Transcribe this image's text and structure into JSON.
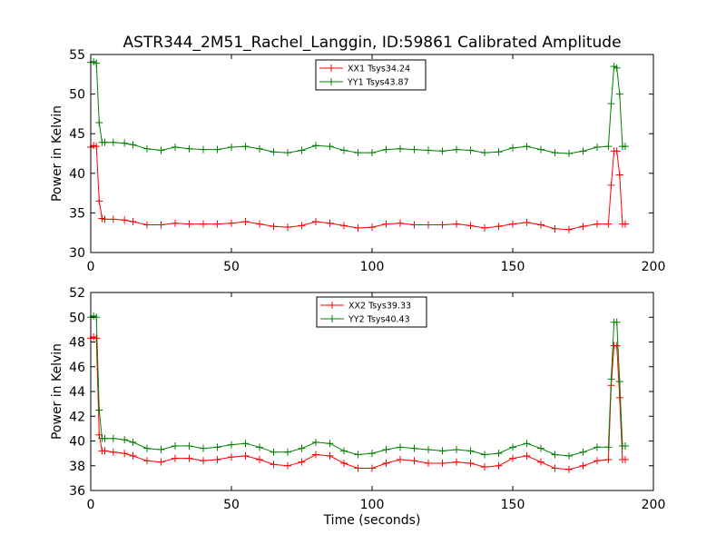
{
  "chart_data": {
    "title": "ASTR344_2M51_Rachel_Langgin, ID:59861 Calibrated Amplitude",
    "xlabel": "Time (seconds)",
    "panels": [
      {
        "type": "line",
        "ylabel": "Power in Kelvin",
        "xlim": [
          0,
          200
        ],
        "ylim": [
          30,
          55
        ],
        "xticks": [
          0,
          50,
          100,
          150,
          200
        ],
        "yticks": [
          30,
          35,
          40,
          45,
          50,
          55
        ],
        "legend_position": "top-center",
        "series": [
          {
            "name": "XX1 Tsys34.24",
            "color": "#ff0000",
            "points": [
              [
                0,
                43.3
              ],
              [
                1,
                43.5
              ],
              [
                2,
                43.4
              ],
              [
                3,
                36.5
              ],
              [
                4,
                34.3
              ],
              [
                5,
                34.2
              ],
              [
                8,
                34.2
              ],
              [
                12,
                34.1
              ],
              [
                15,
                33.9
              ],
              [
                20,
                33.5
              ],
              [
                25,
                33.5
              ],
              [
                30,
                33.7
              ],
              [
                35,
                33.6
              ],
              [
                40,
                33.6
              ],
              [
                45,
                33.6
              ],
              [
                50,
                33.7
              ],
              [
                55,
                33.9
              ],
              [
                60,
                33.6
              ],
              [
                65,
                33.3
              ],
              [
                70,
                33.2
              ],
              [
                75,
                33.4
              ],
              [
                80,
                33.9
              ],
              [
                85,
                33.7
              ],
              [
                90,
                33.4
              ],
              [
                95,
                33.1
              ],
              [
                100,
                33.2
              ],
              [
                105,
                33.6
              ],
              [
                110,
                33.7
              ],
              [
                115,
                33.5
              ],
              [
                120,
                33.5
              ],
              [
                125,
                33.5
              ],
              [
                130,
                33.6
              ],
              [
                135,
                33.4
              ],
              [
                140,
                33.1
              ],
              [
                145,
                33.3
              ],
              [
                150,
                33.6
              ],
              [
                155,
                33.8
              ],
              [
                160,
                33.5
              ],
              [
                165,
                33.0
              ],
              [
                170,
                32.9
              ],
              [
                175,
                33.3
              ],
              [
                180,
                33.6
              ],
              [
                184,
                33.6
              ],
              [
                185,
                38.5
              ],
              [
                186,
                42.8
              ],
              [
                187,
                42.8
              ],
              [
                188,
                39.8
              ],
              [
                189,
                33.6
              ],
              [
                190,
                33.6
              ]
            ]
          },
          {
            "name": "YY1 Tsys43.87",
            "color": "#008000",
            "points": [
              [
                0,
                54.0
              ],
              [
                1,
                54.1
              ],
              [
                2,
                53.9
              ],
              [
                3,
                46.4
              ],
              [
                4,
                43.9
              ],
              [
                5,
                43.9
              ],
              [
                8,
                43.9
              ],
              [
                12,
                43.8
              ],
              [
                15,
                43.6
              ],
              [
                20,
                43.1
              ],
              [
                25,
                42.9
              ],
              [
                30,
                43.3
              ],
              [
                35,
                43.1
              ],
              [
                40,
                43.0
              ],
              [
                45,
                43.0
              ],
              [
                50,
                43.3
              ],
              [
                55,
                43.4
              ],
              [
                60,
                43.1
              ],
              [
                65,
                42.7
              ],
              [
                70,
                42.6
              ],
              [
                75,
                42.9
              ],
              [
                80,
                43.5
              ],
              [
                85,
                43.4
              ],
              [
                90,
                42.9
              ],
              [
                95,
                42.6
              ],
              [
                100,
                42.6
              ],
              [
                105,
                43.0
              ],
              [
                110,
                43.1
              ],
              [
                115,
                43.0
              ],
              [
                120,
                42.9
              ],
              [
                125,
                42.8
              ],
              [
                130,
                43.0
              ],
              [
                135,
                42.9
              ],
              [
                140,
                42.6
              ],
              [
                145,
                42.7
              ],
              [
                150,
                43.2
              ],
              [
                155,
                43.4
              ],
              [
                160,
                43.0
              ],
              [
                165,
                42.6
              ],
              [
                170,
                42.5
              ],
              [
                175,
                42.8
              ],
              [
                180,
                43.3
              ],
              [
                184,
                43.4
              ],
              [
                185,
                48.8
              ],
              [
                186,
                53.5
              ],
              [
                187,
                53.3
              ],
              [
                188,
                50.0
              ],
              [
                189,
                43.4
              ],
              [
                190,
                43.4
              ]
            ]
          }
        ]
      },
      {
        "type": "line",
        "ylabel": "Power in Kelvin",
        "xlim": [
          0,
          200
        ],
        "ylim": [
          36,
          52
        ],
        "xticks": [
          0,
          50,
          100,
          150,
          200
        ],
        "yticks": [
          36,
          38,
          40,
          42,
          44,
          46,
          48,
          50,
          52
        ],
        "legend_position": "top-center",
        "series": [
          {
            "name": "XX2 Tsys39.33",
            "color": "#ff0000",
            "points": [
              [
                0,
                48.3
              ],
              [
                1,
                48.4
              ],
              [
                2,
                48.3
              ],
              [
                3,
                40.5
              ],
              [
                4,
                39.2
              ],
              [
                5,
                39.2
              ],
              [
                8,
                39.1
              ],
              [
                12,
                39.0
              ],
              [
                15,
                38.8
              ],
              [
                20,
                38.4
              ],
              [
                25,
                38.3
              ],
              [
                30,
                38.6
              ],
              [
                35,
                38.6
              ],
              [
                40,
                38.4
              ],
              [
                45,
                38.5
              ],
              [
                50,
                38.7
              ],
              [
                55,
                38.8
              ],
              [
                60,
                38.5
              ],
              [
                65,
                38.1
              ],
              [
                70,
                38.0
              ],
              [
                75,
                38.3
              ],
              [
                80,
                38.9
              ],
              [
                85,
                38.8
              ],
              [
                90,
                38.2
              ],
              [
                95,
                37.8
              ],
              [
                100,
                37.8
              ],
              [
                105,
                38.2
              ],
              [
                110,
                38.5
              ],
              [
                115,
                38.4
              ],
              [
                120,
                38.2
              ],
              [
                125,
                38.2
              ],
              [
                130,
                38.3
              ],
              [
                135,
                38.2
              ],
              [
                140,
                37.9
              ],
              [
                145,
                38.0
              ],
              [
                150,
                38.6
              ],
              [
                155,
                38.8
              ],
              [
                160,
                38.3
              ],
              [
                165,
                37.8
              ],
              [
                170,
                37.7
              ],
              [
                175,
                38.0
              ],
              [
                180,
                38.4
              ],
              [
                184,
                38.5
              ],
              [
                185,
                44.5
              ],
              [
                186,
                47.7
              ],
              [
                187,
                47.7
              ],
              [
                188,
                43.5
              ],
              [
                189,
                38.5
              ],
              [
                190,
                38.5
              ]
            ]
          },
          {
            "name": "YY2 Tsys40.43",
            "color": "#008000",
            "points": [
              [
                0,
                50.0
              ],
              [
                1,
                50.1
              ],
              [
                2,
                50.0
              ],
              [
                3,
                42.5
              ],
              [
                4,
                40.2
              ],
              [
                5,
                40.2
              ],
              [
                8,
                40.2
              ],
              [
                12,
                40.1
              ],
              [
                15,
                39.9
              ],
              [
                20,
                39.4
              ],
              [
                25,
                39.3
              ],
              [
                30,
                39.6
              ],
              [
                35,
                39.6
              ],
              [
                40,
                39.4
              ],
              [
                45,
                39.5
              ],
              [
                50,
                39.7
              ],
              [
                55,
                39.8
              ],
              [
                60,
                39.5
              ],
              [
                65,
                39.1
              ],
              [
                70,
                39.1
              ],
              [
                75,
                39.4
              ],
              [
                80,
                39.9
              ],
              [
                85,
                39.8
              ],
              [
                90,
                39.2
              ],
              [
                95,
                38.9
              ],
              [
                100,
                39.0
              ],
              [
                105,
                39.3
              ],
              [
                110,
                39.5
              ],
              [
                115,
                39.4
              ],
              [
                120,
                39.3
              ],
              [
                125,
                39.2
              ],
              [
                130,
                39.3
              ],
              [
                135,
                39.2
              ],
              [
                140,
                38.9
              ],
              [
                145,
                39.0
              ],
              [
                150,
                39.5
              ],
              [
                155,
                39.8
              ],
              [
                160,
                39.4
              ],
              [
                165,
                38.9
              ],
              [
                170,
                38.8
              ],
              [
                175,
                39.1
              ],
              [
                180,
                39.5
              ],
              [
                184,
                39.5
              ],
              [
                185,
                45.0
              ],
              [
                186,
                49.6
              ],
              [
                187,
                49.6
              ],
              [
                188,
                44.8
              ],
              [
                189,
                39.6
              ],
              [
                190,
                39.6
              ]
            ]
          }
        ]
      }
    ]
  }
}
